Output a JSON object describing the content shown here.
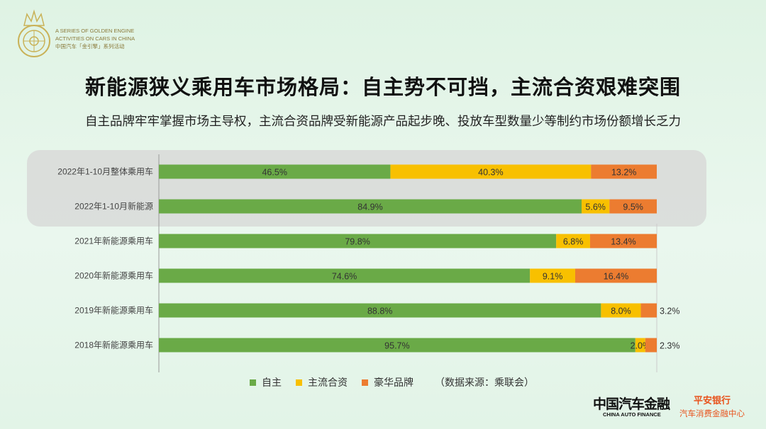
{
  "logo": {
    "line1": "A SERIES OF GOLDEN ENGINE",
    "line2": "ACTIVITIES ON CARS IN CHINA",
    "line3": "中国汽车「金引擎」系列活动"
  },
  "title": "新能源狭义乘用车市场格局：自主势不可挡，主流合资艰难突围",
  "subtitle": "自主品牌牢牢掌握市场主导权，主流合资品牌受新能源产品起步晚、投放车型数量少等制约市场份额增长乏力",
  "colors": {
    "自主": "#6aaa47",
    "主流合资": "#f8c000",
    "豪华品牌": "#ec7c30"
  },
  "chart_data": {
    "type": "bar",
    "orientation": "horizontal",
    "stacked": "100%",
    "categories": [
      "2022年1-10月整体乘用车",
      "2022年1-10月新能源",
      "2021年新能源乘用车",
      "2020年新能源乘用车",
      "2019年新能源乘用车",
      "2018年新能源乘用车"
    ],
    "series": [
      {
        "name": "自主",
        "values": [
          46.5,
          84.9,
          79.8,
          74.6,
          88.8,
          95.7
        ],
        "labels": [
          "46.5%",
          "84.9%",
          "79.8%",
          "74.6%",
          "88.8%",
          "95.7%"
        ]
      },
      {
        "name": "主流合资",
        "values": [
          40.3,
          5.6,
          6.8,
          9.1,
          8.0,
          2.0
        ],
        "labels": [
          "40.3%",
          "5.6%",
          "6.8%",
          "9.1%",
          "8.0%",
          "2.0%"
        ]
      },
      {
        "name": "豪华品牌",
        "values": [
          13.2,
          9.5,
          13.4,
          16.4,
          3.2,
          2.3
        ],
        "labels": [
          "13.2%",
          "9.5%",
          "13.4%",
          "16.4%",
          "3.2%",
          "2.3%"
        ]
      }
    ],
    "highlighted_categories": [
      0,
      1
    ],
    "xlim": [
      0,
      100
    ],
    "source": "（数据来源：乘联会）"
  },
  "footer": {
    "brand_cn": "中国汽车金融",
    "brand_en": "CHINA AUTO FINANCE",
    "bank": "平安银行",
    "center": "汽车消费金融中心"
  }
}
